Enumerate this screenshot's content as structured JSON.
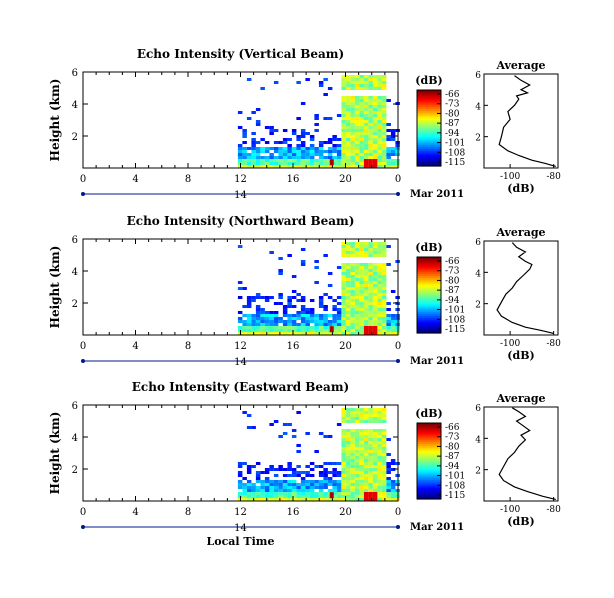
{
  "chart_data": [
    {
      "type": "heatmap",
      "title": "Echo Intensity (Vertical Beam)",
      "ylabel": "Height (km)",
      "xlabel": "",
      "y_ticks": [
        "2",
        "4",
        "6"
      ],
      "x_ticks": [
        "0",
        "4",
        "8",
        "12",
        "16",
        "20",
        "0"
      ],
      "date_bar_label": "14",
      "date_text": "Mar 2011",
      "colorbar": {
        "unit": "(dB)",
        "ticks": [
          "-66",
          "-73",
          "-80",
          "-87",
          "-94",
          "-101",
          "-108",
          "-115"
        ],
        "range": [
          -115,
          -66
        ]
      },
      "data_start_hour": 11.8,
      "profile": {
        "title": "Average",
        "xlabel": "(dB)",
        "x_ticks": [
          "-100",
          "-80"
        ],
        "y_ticks": [
          "2",
          "4",
          "6"
        ],
        "xlim": [
          -112,
          -78
        ],
        "ylim": [
          0,
          6
        ],
        "points": [
          [
            -79,
            0.1
          ],
          [
            -84,
            0.3
          ],
          [
            -90,
            0.5
          ],
          [
            -96,
            0.8
          ],
          [
            -101,
            1.1
          ],
          [
            -105,
            1.5
          ],
          [
            -104,
            2.0
          ],
          [
            -103,
            2.6
          ],
          [
            -100,
            3.1
          ],
          [
            -101,
            3.6
          ],
          [
            -98,
            4.0
          ],
          [
            -96,
            4.4
          ],
          [
            -97,
            4.6
          ],
          [
            -92,
            4.8
          ],
          [
            -95,
            5.0
          ],
          [
            -91,
            5.3
          ],
          [
            -95,
            5.6
          ],
          [
            -98,
            5.9
          ]
        ]
      }
    },
    {
      "type": "heatmap",
      "title": "Echo Intensity (Northward Beam)",
      "ylabel": "Height (km)",
      "xlabel": "",
      "y_ticks": [
        "2",
        "4",
        "6"
      ],
      "x_ticks": [
        "0",
        "4",
        "8",
        "12",
        "16",
        "20",
        "0"
      ],
      "date_bar_label": "14",
      "date_text": "Mar 2011",
      "colorbar": {
        "unit": "(dB)",
        "ticks": [
          "-66",
          "-73",
          "-80",
          "-87",
          "-94",
          "-101",
          "-108",
          "-115"
        ],
        "range": [
          -115,
          -66
        ]
      },
      "data_start_hour": 11.8,
      "profile": {
        "title": "Average",
        "xlabel": "(dB)",
        "x_ticks": [
          "-100",
          "-80"
        ],
        "y_ticks": [
          "2",
          "4",
          "6"
        ],
        "xlim": [
          -112,
          -78
        ],
        "ylim": [
          0,
          6
        ],
        "points": [
          [
            -80,
            0.1
          ],
          [
            -86,
            0.3
          ],
          [
            -93,
            0.5
          ],
          [
            -99,
            0.8
          ],
          [
            -104,
            1.2
          ],
          [
            -106,
            1.6
          ],
          [
            -104,
            2.1
          ],
          [
            -102,
            2.6
          ],
          [
            -99,
            3.0
          ],
          [
            -97,
            3.4
          ],
          [
            -94,
            3.8
          ],
          [
            -91,
            4.2
          ],
          [
            -90,
            4.5
          ],
          [
            -93,
            4.7
          ],
          [
            -96,
            5.0
          ],
          [
            -93,
            5.3
          ],
          [
            -97,
            5.6
          ],
          [
            -99,
            5.9
          ]
        ]
      }
    },
    {
      "type": "heatmap",
      "title": "Echo Intensity (Eastward Beam)",
      "ylabel": "Height (km)",
      "xlabel": "Local Time",
      "y_ticks": [
        "2",
        "4",
        "6"
      ],
      "x_ticks": [
        "0",
        "4",
        "8",
        "12",
        "16",
        "20",
        "0"
      ],
      "date_bar_label": "14",
      "date_text": "Mar 2011",
      "colorbar": {
        "unit": "(dB)",
        "ticks": [
          "-66",
          "-73",
          "-80",
          "-87",
          "-94",
          "-101",
          "-108",
          "-115"
        ],
        "range": [
          -115,
          -66
        ]
      },
      "data_start_hour": 11.8,
      "profile": {
        "title": "Average",
        "xlabel": "(dB)",
        "x_ticks": [
          "-100",
          "-80"
        ],
        "y_ticks": [
          "2",
          "4",
          "6"
        ],
        "xlim": [
          -112,
          -78
        ],
        "ylim": [
          0,
          6
        ],
        "points": [
          [
            -79,
            0.1
          ],
          [
            -85,
            0.3
          ],
          [
            -92,
            0.6
          ],
          [
            -98,
            0.9
          ],
          [
            -103,
            1.3
          ],
          [
            -105,
            1.7
          ],
          [
            -103,
            2.2
          ],
          [
            -101,
            2.7
          ],
          [
            -98,
            3.1
          ],
          [
            -96,
            3.5
          ],
          [
            -93,
            3.9
          ],
          [
            -95,
            4.2
          ],
          [
            -91,
            4.5
          ],
          [
            -94,
            4.8
          ],
          [
            -97,
            5.1
          ],
          [
            -93,
            5.4
          ],
          [
            -96,
            5.7
          ],
          [
            -99,
            5.95
          ]
        ]
      }
    }
  ]
}
